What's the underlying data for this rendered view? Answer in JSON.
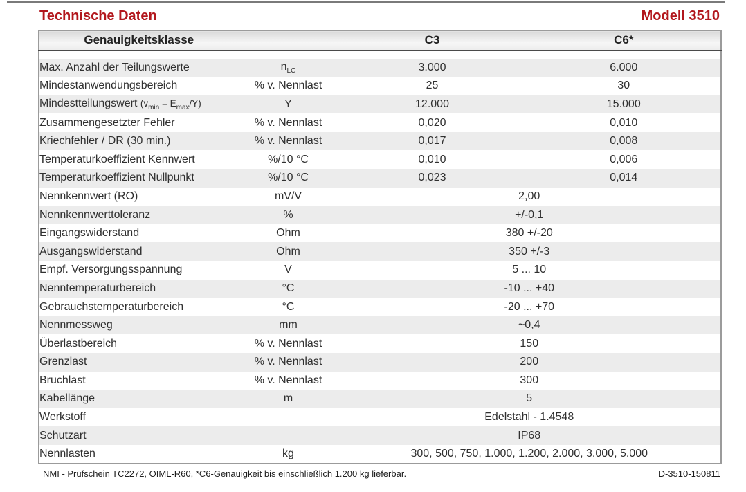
{
  "page": {
    "title": "Technische Daten",
    "model": "Modell 3510",
    "footer_left": "NMI - Prüfschein TC2272, OIML-R60, *C6-Genauigkeit bis einschließlich 1.200 kg lieferbar.",
    "footer_right": "D-3510-150811"
  },
  "colors": {
    "accent": "#B2171D",
    "stripe": "#ECECEC",
    "rule": "#7A7A7A",
    "outer_border": "#9B9B9B",
    "inner_border": "#C6C6C6",
    "header_border": "#4A4A4A"
  },
  "table": {
    "header": {
      "label": "Genauigkeitsklasse",
      "unit": "",
      "c3": "C3",
      "c6": "C6*"
    },
    "rows": [
      {
        "label": [
          [
            "t",
            "Max. Anzahl der Teilungswerte"
          ]
        ],
        "unit": [
          [
            "t",
            "n"
          ],
          [
            "s",
            "LC"
          ]
        ],
        "c3": "3.000",
        "c6": "6.000"
      },
      {
        "label": [
          [
            "t",
            "Mindestanwendungsbereich"
          ]
        ],
        "unit": [
          [
            "t",
            "% v. Nennlast"
          ]
        ],
        "c3": "25",
        "c6": "30"
      },
      {
        "label": [
          [
            "t",
            "Mindestteilungswert "
          ],
          [
            "p",
            "(v"
          ],
          [
            "s",
            "min"
          ],
          [
            "p",
            " = E"
          ],
          [
            "s",
            "max"
          ],
          [
            "p",
            "/Y)"
          ]
        ],
        "unit": [
          [
            "t",
            "Y"
          ]
        ],
        "c3": "12.000",
        "c6": "15.000"
      },
      {
        "label": [
          [
            "t",
            "Zusammengesetzter Fehler"
          ]
        ],
        "unit": [
          [
            "t",
            "% v. Nennlast"
          ]
        ],
        "c3": "0,020",
        "c6": "0,010"
      },
      {
        "label": [
          [
            "t",
            "Kriechfehler / DR (30 min.)"
          ]
        ],
        "unit": [
          [
            "t",
            "% v. Nennlast"
          ]
        ],
        "c3": "0,017",
        "c6": "0,008"
      },
      {
        "label": [
          [
            "t",
            "Temperaturkoeffizient Kennwert"
          ]
        ],
        "unit": [
          [
            "t",
            "%/10 °C"
          ]
        ],
        "c3": "0,010",
        "c6": "0,006"
      },
      {
        "label": [
          [
            "t",
            "Temperaturkoeffizient Nullpunkt"
          ]
        ],
        "unit": [
          [
            "t",
            "%/10 °C"
          ]
        ],
        "c3": "0,023",
        "c6": "0,014"
      },
      {
        "label": [
          [
            "t",
            "Nennkennwert (RO)"
          ]
        ],
        "unit": [
          [
            "t",
            "mV/V"
          ]
        ],
        "span": "2,00"
      },
      {
        "label": [
          [
            "t",
            "Nennkennwerttoleranz"
          ]
        ],
        "unit": [
          [
            "t",
            "%"
          ]
        ],
        "span": "+/-0,1"
      },
      {
        "label": [
          [
            "t",
            "Eingangswiderstand"
          ]
        ],
        "unit": [
          [
            "t",
            "Ohm"
          ]
        ],
        "span": "380 +/-20"
      },
      {
        "label": [
          [
            "t",
            "Ausgangswiderstand"
          ]
        ],
        "unit": [
          [
            "t",
            "Ohm"
          ]
        ],
        "span": "350 +/-3"
      },
      {
        "label": [
          [
            "t",
            "Empf. Versorgungsspannung"
          ]
        ],
        "unit": [
          [
            "t",
            "V"
          ]
        ],
        "span": "5 ... 10"
      },
      {
        "label": [
          [
            "t",
            "Nenntemperaturbereich"
          ]
        ],
        "unit": [
          [
            "t",
            "°C"
          ]
        ],
        "span": "-10 ... +40"
      },
      {
        "label": [
          [
            "t",
            "Gebrauchstemperaturbereich"
          ]
        ],
        "unit": [
          [
            "t",
            "°C"
          ]
        ],
        "span": "-20 ... +70"
      },
      {
        "label": [
          [
            "t",
            "Nennmessweg"
          ]
        ],
        "unit": [
          [
            "t",
            "mm"
          ]
        ],
        "span": "~0,4"
      },
      {
        "label": [
          [
            "t",
            "Überlastbereich"
          ]
        ],
        "unit": [
          [
            "t",
            "% v. Nennlast"
          ]
        ],
        "span": "150"
      },
      {
        "label": [
          [
            "t",
            "Grenzlast"
          ]
        ],
        "unit": [
          [
            "t",
            "% v. Nennlast"
          ]
        ],
        "span": "200"
      },
      {
        "label": [
          [
            "t",
            "Bruchlast"
          ]
        ],
        "unit": [
          [
            "t",
            "% v. Nennlast"
          ]
        ],
        "span": "300"
      },
      {
        "label": [
          [
            "t",
            "Kabellänge"
          ]
        ],
        "unit": [
          [
            "t",
            "m"
          ]
        ],
        "span": "5"
      },
      {
        "label": [
          [
            "t",
            "Werkstoff"
          ]
        ],
        "unit": [],
        "span": "Edelstahl - 1.4548"
      },
      {
        "label": [
          [
            "t",
            "Schutzart"
          ]
        ],
        "unit": [],
        "span": "IP68"
      },
      {
        "label": [
          [
            "t",
            "Nennlasten"
          ]
        ],
        "unit": [
          [
            "t",
            "kg"
          ]
        ],
        "span": "300, 500, 750, 1.000, 1.200, 2.000, 3.000, 5.000"
      }
    ]
  }
}
